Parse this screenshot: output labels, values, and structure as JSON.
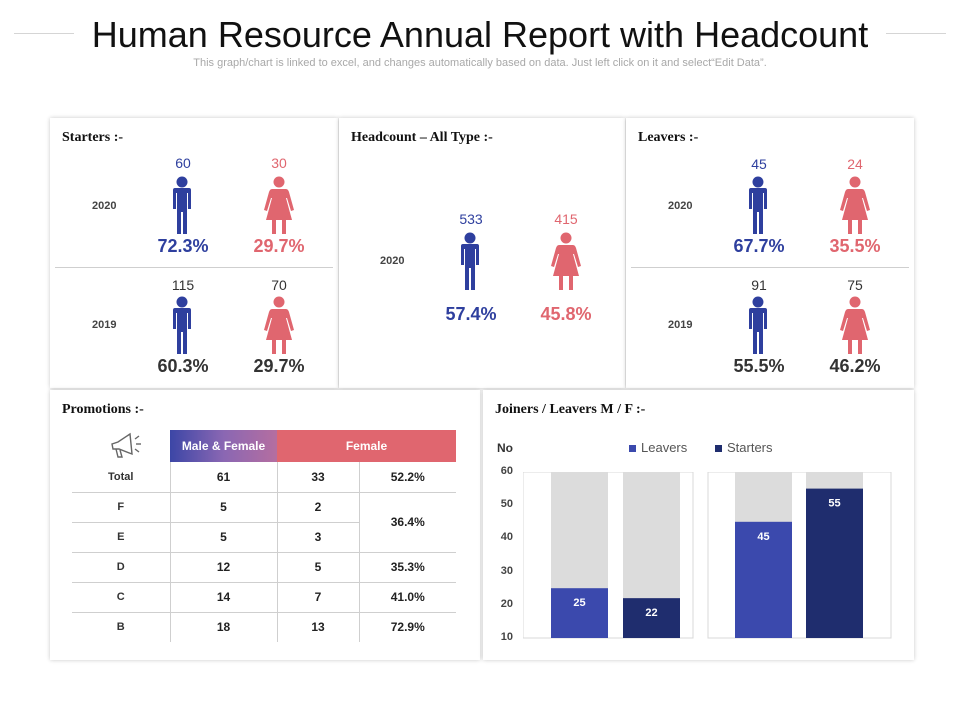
{
  "header": {
    "title": "Human Resource Annual Report with Headcount",
    "subtitle": "This graph/chart is linked to excel, and changes automatically based on data. Just left click on it and select“Edit Data”."
  },
  "colors": {
    "male": "#2e3f9e",
    "female": "#e0666f",
    "leavers": "#3b49ad",
    "starters": "#1f2d6e",
    "background_bar": "#dcdcdc"
  },
  "starters": {
    "title": "Starters :-",
    "rows": [
      {
        "year": "2020",
        "male_count": "60",
        "female_count": "30",
        "male_pct": "72.3%",
        "female_pct": "29.7%"
      },
      {
        "year": "2019",
        "male_count": "115",
        "female_count": "70",
        "male_pct": "60.3%",
        "female_pct": "29.7%"
      }
    ]
  },
  "headcount": {
    "title": "Headcount – All Type :-",
    "year": "2020",
    "male_count": "533",
    "female_count": "415",
    "male_pct": "57.4%",
    "female_pct": "45.8%"
  },
  "leavers": {
    "title": "Leavers :-",
    "rows": [
      {
        "year": "2020",
        "male_count": "45",
        "female_count": "24",
        "male_pct": "67.7%",
        "female_pct": "35.5%"
      },
      {
        "year": "2019",
        "male_count": "91",
        "female_count": "75",
        "male_pct": "55.5%",
        "female_pct": "46.2%"
      }
    ]
  },
  "promotions": {
    "title": "Promotions :-",
    "headers": [
      "Male & Female",
      "Female"
    ],
    "rows": [
      {
        "label": "Total",
        "a": "61",
        "b": "33",
        "pct": "52.2%"
      },
      {
        "label": "F",
        "a": "5",
        "b": "2",
        "pct": "36.4%"
      },
      {
        "label": "E",
        "a": "5",
        "b": "3",
        "pct": ""
      },
      {
        "label": "D",
        "a": "12",
        "b": "5",
        "pct": "35.3%"
      },
      {
        "label": "C",
        "a": "14",
        "b": "7",
        "pct": "41.0%"
      },
      {
        "label": "B",
        "a": "18",
        "b": "13",
        "pct": "72.9%"
      }
    ]
  },
  "chart_data": {
    "type": "bar",
    "title": "Joiners / Leavers M / F :-",
    "ylabel": "No",
    "ylim": [
      10,
      60
    ],
    "yticks": [
      60,
      50,
      40,
      30,
      20,
      10
    ],
    "grid": false,
    "legend_position": "top",
    "series": [
      {
        "name": "Leavers",
        "values": [
          25,
          45
        ]
      },
      {
        "name": "Starters",
        "values": [
          22,
          55
        ]
      }
    ],
    "bars": [
      {
        "series": "Leavers",
        "value": 25,
        "group": 0
      },
      {
        "series": "Starters",
        "value": 22,
        "group": 0
      },
      {
        "series": "Leavers",
        "value": 45,
        "group": 1
      },
      {
        "series": "Starters",
        "value": 55,
        "group": 1
      }
    ]
  }
}
